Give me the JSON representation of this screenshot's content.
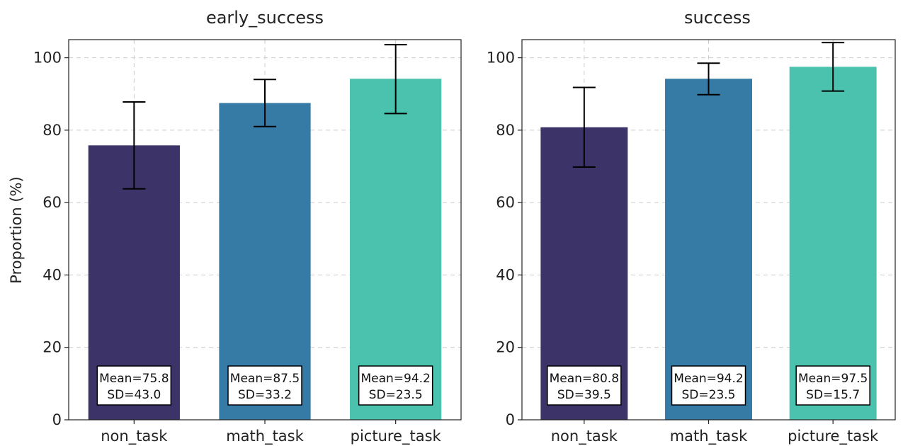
{
  "chart_data": [
    {
      "type": "bar",
      "title": "early_success",
      "ylabel": "Proportion (%)",
      "xlabel": "",
      "ylim": [
        0,
        105
      ],
      "yticks": [
        0,
        20,
        40,
        60,
        80,
        100
      ],
      "grid": true,
      "categories": [
        "non_task",
        "math_task",
        "picture_task"
      ],
      "values": [
        75.8,
        87.5,
        94.2
      ],
      "error_low": [
        63.8,
        81.0,
        84.6
      ],
      "error_high": [
        87.8,
        94.0,
        103.6
      ],
      "annotations": [
        {
          "mean": "Mean=75.8",
          "sd": "SD=43.0"
        },
        {
          "mean": "Mean=87.5",
          "sd": "SD=33.2"
        },
        {
          "mean": "Mean=94.2",
          "sd": "SD=23.5"
        }
      ]
    },
    {
      "type": "bar",
      "title": "success",
      "ylabel": "",
      "xlabel": "",
      "ylim": [
        0,
        105
      ],
      "yticks": [
        0,
        20,
        40,
        60,
        80,
        100
      ],
      "grid": true,
      "categories": [
        "non_task",
        "math_task",
        "picture_task"
      ],
      "values": [
        80.8,
        94.2,
        97.5
      ],
      "error_low": [
        69.8,
        89.8,
        90.8
      ],
      "error_high": [
        91.8,
        98.5,
        104.2
      ],
      "annotations": [
        {
          "mean": "Mean=80.8",
          "sd": "SD=39.5"
        },
        {
          "mean": "Mean=94.2",
          "sd": "SD=23.5"
        },
        {
          "mean": "Mean=97.5",
          "sd": "SD=15.7"
        }
      ]
    }
  ],
  "colors": {
    "bars": [
      "#3c3468",
      "#367ba6",
      "#4bc2ae"
    ]
  }
}
